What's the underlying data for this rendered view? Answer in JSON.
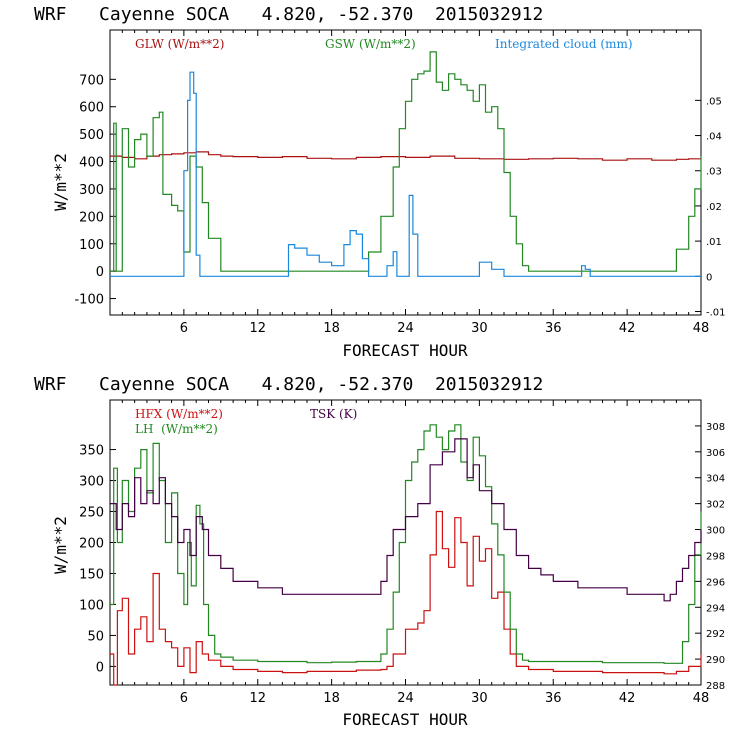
{
  "colors": {
    "glw": "#aa1111",
    "gsw": "#228822",
    "cloud": "#1a88dd",
    "hfx": "#cc1111",
    "lh": "#228822",
    "tsk": "#440044"
  },
  "chart_data": [
    {
      "type": "line",
      "title": "WRF   Cayenne SOCA   4.820, -52.370  2015032912",
      "xlabel": "FORECAST HOUR",
      "ylabel": "W/m**2",
      "xlim": [
        0,
        48
      ],
      "ylim": [
        -160,
        880
      ],
      "y2lim": [
        -0.011,
        0.07
      ],
      "xticks": [
        "6",
        "12",
        "18",
        "24",
        "30",
        "36",
        "42",
        "48"
      ],
      "yticks": [
        "-100",
        "0",
        "100",
        "200",
        "300",
        "400",
        "500",
        "600",
        "700"
      ],
      "y2ticks": [
        "-.01",
        "0",
        ".01",
        ".02",
        ".03",
        ".04",
        ".05"
      ],
      "legend": [
        "GLW (W/m**2)",
        "GSW (W/m**2)",
        "Integrated cloud (mm)"
      ],
      "series": [
        {
          "name": "GLW (W/m**2)",
          "axis": "left",
          "x": [
            0,
            1,
            2,
            3,
            4,
            5,
            6,
            7,
            8,
            9,
            10,
            12,
            14,
            16,
            18,
            20,
            22,
            24,
            26,
            28,
            30,
            32,
            34,
            36,
            38,
            40,
            42,
            44,
            46,
            47,
            48
          ],
          "y": [
            420,
            415,
            410,
            420,
            425,
            428,
            432,
            435,
            425,
            420,
            418,
            415,
            418,
            412,
            410,
            415,
            418,
            415,
            420,
            412,
            410,
            408,
            410,
            412,
            410,
            405,
            410,
            405,
            408,
            410,
            412
          ]
        },
        {
          "name": "GSW (W/m**2)",
          "axis": "left",
          "x": [
            0,
            0.3,
            0.5,
            1,
            1.5,
            2,
            2.5,
            3,
            3.5,
            4,
            4.3,
            5,
            5.5,
            6,
            6.5,
            7,
            7.5,
            8,
            9,
            9.5,
            10,
            20,
            21,
            22,
            23,
            23.5,
            24,
            24.5,
            25,
            25.5,
            26,
            26.5,
            27,
            27.5,
            28,
            28.5,
            29,
            29.5,
            30,
            30.5,
            31,
            31.5,
            32,
            32.5,
            33,
            33.5,
            34,
            44,
            45,
            46,
            47,
            47.5,
            48
          ],
          "y": [
            0,
            540,
            0,
            520,
            380,
            480,
            500,
            420,
            560,
            580,
            280,
            240,
            220,
            70,
            420,
            380,
            250,
            120,
            0,
            0,
            0,
            0,
            70,
            200,
            380,
            520,
            620,
            700,
            720,
            730,
            800,
            690,
            660,
            720,
            700,
            680,
            660,
            620,
            680,
            580,
            600,
            520,
            360,
            200,
            100,
            20,
            0,
            0,
            0,
            80,
            200,
            300,
            420
          ]
        },
        {
          "name": "Integrated cloud (mm)",
          "axis": "right",
          "x": [
            0,
            5.5,
            6,
            6.3,
            6.5,
            6.8,
            7,
            7.3,
            14,
            14.5,
            15,
            16,
            17,
            18,
            19,
            19.5,
            20,
            20.5,
            21,
            22,
            22.5,
            23,
            23.3,
            24,
            24.3,
            24.6,
            25,
            26,
            29,
            30,
            31,
            32,
            38,
            38.3,
            38.6,
            39,
            48
          ],
          "y": [
            0,
            0,
            0.03,
            0.05,
            0.058,
            0.052,
            0.006,
            0,
            0,
            0.009,
            0.008,
            0.006,
            0.004,
            0.003,
            0.009,
            0.013,
            0.012,
            0.005,
            0,
            0,
            0.003,
            0.007,
            0,
            0,
            0.023,
            0.012,
            0,
            0,
            0,
            0.004,
            0.002,
            0,
            0,
            0.003,
            0.002,
            0,
            0
          ]
        }
      ]
    },
    {
      "type": "line",
      "title": "WRF   Cayenne SOCA   4.820, -52.370  2015032912",
      "xlabel": "FORECAST HOUR",
      "ylabel": "W/m**2",
      "xlim": [
        0,
        48
      ],
      "ylim": [
        -30,
        430
      ],
      "y2lim": [
        288,
        310
      ],
      "xticks": [
        "6",
        "12",
        "18",
        "24",
        "30",
        "36",
        "42",
        "48"
      ],
      "yticks": [
        "0",
        "50",
        "100",
        "150",
        "200",
        "250",
        "300",
        "350"
      ],
      "y2ticks": [
        "288",
        "290",
        "292",
        "294",
        "296",
        "298",
        "300",
        "302",
        "304",
        "306",
        "308"
      ],
      "legend": [
        "HFX (W/m**2)",
        "LH  (W/m**2)",
        "TSK (K)"
      ],
      "series": [
        {
          "name": "HFX (W/m**2)",
          "axis": "left",
          "x": [
            0,
            0.3,
            0.6,
            1,
            1.5,
            2,
            2.5,
            3,
            3.5,
            4,
            4.5,
            5,
            5.5,
            6,
            6.5,
            7,
            7.5,
            8,
            9,
            10,
            12,
            14,
            16,
            18,
            20,
            22,
            22.5,
            23,
            24,
            25,
            25.5,
            26,
            26.5,
            27,
            27.5,
            28,
            28.5,
            29,
            29.5,
            30,
            30.5,
            31,
            31.5,
            32,
            32.5,
            33,
            34,
            36,
            40,
            44,
            45,
            46,
            47,
            48
          ],
          "y": [
            20,
            -30,
            90,
            110,
            20,
            60,
            80,
            40,
            150,
            60,
            40,
            30,
            0,
            30,
            -10,
            40,
            20,
            10,
            0,
            -5,
            -8,
            -10,
            -8,
            -8,
            -6,
            -5,
            0,
            20,
            60,
            70,
            90,
            180,
            250,
            190,
            160,
            240,
            200,
            130,
            210,
            170,
            190,
            110,
            120,
            60,
            20,
            0,
            -5,
            -8,
            -10,
            -10,
            -12,
            -8,
            0,
            20
          ]
        },
        {
          "name": "LH  (W/m**2)",
          "axis": "left",
          "x": [
            0,
            0.3,
            0.6,
            1,
            1.5,
            2,
            2.5,
            3,
            3.5,
            4,
            4.5,
            5,
            5.5,
            6,
            6.3,
            6.6,
            7,
            7.3,
            7.6,
            8,
            8.5,
            9,
            10,
            12,
            14,
            16,
            18,
            20,
            22,
            22.5,
            23,
            23.5,
            24,
            24.5,
            25,
            25.5,
            26,
            26.5,
            27,
            27.5,
            28,
            28.5,
            29,
            29.5,
            30,
            30.5,
            31,
            31.5,
            32,
            32.5,
            33,
            33.5,
            34,
            36,
            40,
            44,
            45,
            46,
            46.5,
            47,
            47.5,
            48
          ],
          "y": [
            100,
            320,
            200,
            300,
            250,
            320,
            350,
            280,
            360,
            300,
            200,
            280,
            150,
            100,
            200,
            130,
            260,
            230,
            100,
            50,
            20,
            15,
            10,
            8,
            8,
            6,
            7,
            8,
            20,
            60,
            120,
            200,
            300,
            330,
            350,
            380,
            390,
            370,
            350,
            380,
            390,
            330,
            300,
            370,
            340,
            290,
            230,
            180,
            120,
            60,
            20,
            10,
            8,
            8,
            6,
            6,
            5,
            5,
            40,
            100,
            180,
            250
          ]
        },
        {
          "name": "TSK (K)",
          "axis": "right",
          "x": [
            0,
            0.5,
            1,
            1.5,
            2,
            2.5,
            3,
            3.5,
            4,
            4.5,
            5,
            5.5,
            6,
            6.5,
            7,
            7.5,
            8,
            9,
            10,
            12,
            14,
            16,
            18,
            20,
            21,
            22,
            22.5,
            23,
            24,
            25,
            26,
            27,
            28,
            29,
            29.5,
            30,
            31,
            32,
            33,
            34,
            35,
            36,
            38,
            40,
            42,
            44,
            45,
            45.5,
            46,
            46.5,
            47,
            47.5,
            48
          ],
          "y": [
            302,
            300,
            302,
            301,
            304,
            302,
            303,
            302,
            304,
            302,
            301,
            299,
            300,
            298,
            301,
            300,
            298,
            297,
            296,
            295.5,
            295,
            295,
            295,
            295,
            295,
            296,
            298,
            300,
            301,
            302,
            305,
            306,
            307,
            304,
            305,
            303,
            302,
            300,
            298,
            297,
            296.5,
            296,
            295.5,
            295.5,
            295,
            295,
            294.5,
            295,
            296,
            297,
            298,
            299,
            300
          ]
        }
      ]
    }
  ]
}
